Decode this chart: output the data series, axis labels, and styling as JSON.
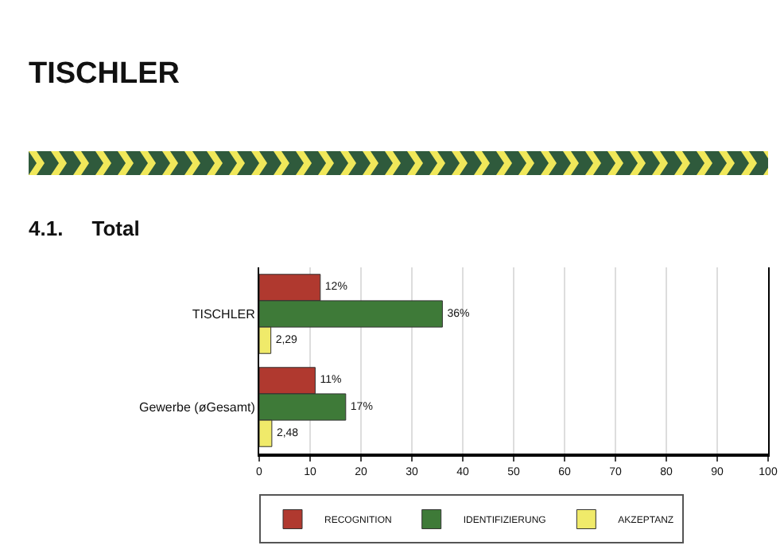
{
  "chart_data": {
    "type": "bar",
    "title": "TISCHLER",
    "subtitle": "4.1.     Total",
    "orientation": "horizontal",
    "categories": [
      "TISCHLER",
      "Gewerbe (øGesamt)"
    ],
    "series": [
      {
        "name": "RECOGNITION",
        "color": "#b0392f",
        "values": [
          12,
          11
        ],
        "value_labels": [
          "12%",
          "11%"
        ]
      },
      {
        "name": "IDENTIFIZIERUNG",
        "color": "#3e7a38",
        "values": [
          36,
          17
        ],
        "value_labels": [
          "36%",
          "17%"
        ]
      },
      {
        "name": "AKZEPTANZ",
        "color": "#f0ea6a",
        "values": [
          2.29,
          2.48
        ],
        "value_labels": [
          "2,29",
          "2,48"
        ]
      }
    ],
    "xlim": [
      0,
      100
    ],
    "xticks": [
      0,
      10,
      20,
      30,
      40,
      50,
      60,
      70,
      80,
      90,
      100
    ],
    "grid": "x",
    "legend": "bottom"
  }
}
